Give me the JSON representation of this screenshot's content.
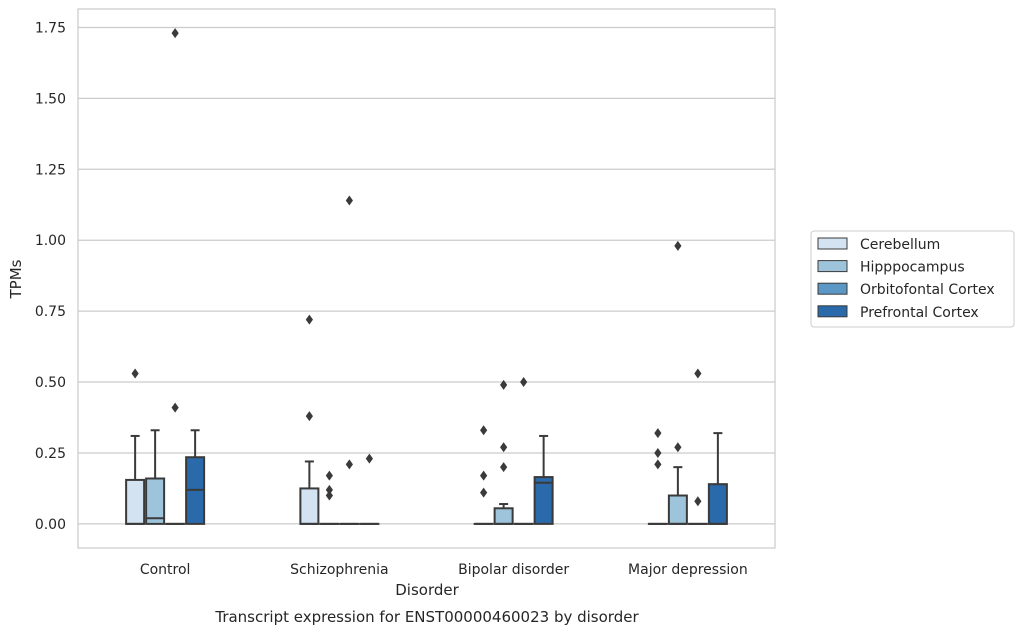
{
  "chart_data": {
    "type": "box",
    "title": "",
    "caption": "Transcript expression for ENST00000460023 by disorder",
    "xlabel": "Disorder",
    "ylabel": "TPMs",
    "ylim": [
      -0.085,
      1.815
    ],
    "yticks": [
      "0.00",
      "0.25",
      "0.50",
      "0.75",
      "1.00",
      "1.25",
      "1.50",
      "1.75"
    ],
    "ytick_values": [
      0,
      0.25,
      0.5,
      0.75,
      1.0,
      1.25,
      1.5,
      1.75
    ],
    "grid": true,
    "legend_position": "right",
    "categories": [
      "Control",
      "Schizophrenia",
      "Bipolar disorder",
      "Major depression"
    ],
    "series": [
      {
        "name": "Cerebellum",
        "color": "#d3e3f2",
        "boxes": [
          {
            "whisker_low": 0.0,
            "q1": 0.0,
            "median": 0.0,
            "q3": 0.155,
            "whisker_high": 0.31,
            "outliers": [
              0.53
            ]
          },
          {
            "whisker_low": 0.0,
            "q1": 0.0,
            "median": 0.0,
            "q3": 0.125,
            "whisker_high": 0.22,
            "outliers": [
              0.38,
              0.72
            ]
          },
          {
            "whisker_low": 0.0,
            "q1": 0.0,
            "median": 0.0,
            "q3": 0.0,
            "whisker_high": 0.0,
            "outliers": [
              0.11,
              0.17,
              0.33
            ]
          },
          {
            "whisker_low": 0.0,
            "q1": 0.0,
            "median": 0.0,
            "q3": 0.0,
            "whisker_high": 0.0,
            "outliers": [
              0.21,
              0.25,
              0.32
            ]
          }
        ]
      },
      {
        "name": "Hipppocampus",
        "color": "#9ec4dc",
        "boxes": [
          {
            "whisker_low": 0.0,
            "q1": 0.0,
            "median": 0.02,
            "q3": 0.16,
            "whisker_high": 0.33,
            "outliers": []
          },
          {
            "whisker_low": 0.0,
            "q1": 0.0,
            "median": 0.0,
            "q3": 0.0,
            "whisker_high": 0.0,
            "outliers": [
              0.1,
              0.12,
              0.17
            ]
          },
          {
            "whisker_low": 0.0,
            "q1": 0.0,
            "median": 0.0,
            "q3": 0.055,
            "whisker_high": 0.07,
            "outliers": [
              0.2,
              0.27,
              0.49
            ]
          },
          {
            "whisker_low": 0.0,
            "q1": 0.0,
            "median": 0.0,
            "q3": 0.1,
            "whisker_high": 0.2,
            "outliers": [
              0.27,
              0.98
            ]
          }
        ]
      },
      {
        "name": "Orbitofontal Cortex",
        "color": "#5b98c6",
        "boxes": [
          {
            "whisker_low": 0.0,
            "q1": 0.0,
            "median": 0.0,
            "q3": 0.0,
            "whisker_high": 0.0,
            "outliers": [
              0.41,
              1.73
            ]
          },
          {
            "whisker_low": 0.0,
            "q1": 0.0,
            "median": 0.0,
            "q3": 0.0,
            "whisker_high": 0.0,
            "outliers": [
              0.21,
              1.14
            ]
          },
          {
            "whisker_low": 0.0,
            "q1": 0.0,
            "median": 0.0,
            "q3": 0.0,
            "whisker_high": 0.0,
            "outliers": [
              0.5
            ]
          },
          {
            "whisker_low": 0.0,
            "q1": 0.0,
            "median": 0.0,
            "q3": 0.0,
            "whisker_high": 0.0,
            "outliers": [
              0.08,
              0.53
            ]
          }
        ]
      },
      {
        "name": "Prefrontal Cortex",
        "color": "#2a69aa",
        "boxes": [
          {
            "whisker_low": 0.0,
            "q1": 0.0,
            "median": 0.12,
            "q3": 0.235,
            "whisker_high": 0.33,
            "outliers": []
          },
          {
            "whisker_low": 0.0,
            "q1": 0.0,
            "median": 0.0,
            "q3": 0.0,
            "whisker_high": 0.0,
            "outliers": [
              0.23
            ]
          },
          {
            "whisker_low": 0.0,
            "q1": 0.0,
            "median": 0.145,
            "q3": 0.165,
            "whisker_high": 0.31,
            "outliers": []
          },
          {
            "whisker_low": 0.0,
            "q1": 0.0,
            "median": 0.0,
            "q3": 0.14,
            "whisker_high": 0.32,
            "outliers": []
          }
        ]
      }
    ]
  }
}
